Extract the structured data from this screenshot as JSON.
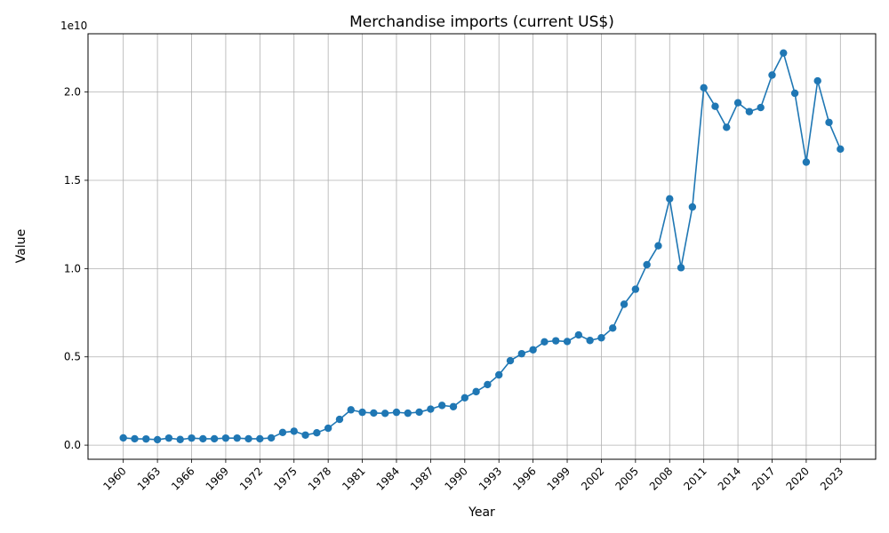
{
  "chart_data": {
    "type": "line",
    "title": "Merchandise imports (current US$)",
    "xlabel": "Year",
    "ylabel": "Value",
    "y_offset_label": "1e10",
    "xlim": [
      1956.9,
      2026.1
    ],
    "ylim": [
      -0.08,
      2.33
    ],
    "y_scale_factor": 10000000000,
    "grid": true,
    "marker": "circle",
    "line_color": "#1f77b4",
    "x_ticks": [
      1960,
      1963,
      1966,
      1969,
      1972,
      1975,
      1978,
      1981,
      1984,
      1987,
      1990,
      1993,
      1996,
      1999,
      2002,
      2005,
      2008,
      2011,
      2014,
      2017,
      2020,
      2023
    ],
    "x_tick_labels": [
      "1960",
      "1963",
      "1966",
      "1969",
      "1972",
      "1975",
      "1978",
      "1981",
      "1984",
      "1987",
      "1990",
      "1993",
      "1996",
      "1999",
      "2002",
      "2005",
      "2008",
      "2011",
      "2014",
      "2017",
      "2020",
      "2023"
    ],
    "y_ticks": [
      0.0,
      0.5,
      1.0,
      1.5,
      2.0
    ],
    "y_tick_labels": [
      "0.0",
      "0.5",
      "1.0",
      "1.5",
      "2.0"
    ],
    "series": [
      {
        "x": [
          1960,
          1961,
          1962,
          1963,
          1964,
          1965,
          1966,
          1967,
          1968,
          1969,
          1970,
          1971,
          1972,
          1973,
          1974,
          1975,
          1976,
          1977,
          1978,
          1979,
          1980,
          1981,
          1982,
          1983,
          1984,
          1985,
          1986,
          1987,
          1988,
          1989,
          1990,
          1991,
          1992,
          1993,
          1994,
          1995,
          1996,
          1997,
          1998,
          1999,
          2000,
          2001,
          2002,
          2003,
          2004,
          2005,
          2006,
          2007,
          2008,
          2009,
          2010,
          2011,
          2012,
          2013,
          2014,
          2015,
          2016,
          2017,
          2018,
          2019,
          2020,
          2021,
          2022,
          2023
        ],
        "y": [
          0.041,
          0.036,
          0.035,
          0.031,
          0.04,
          0.032,
          0.04,
          0.036,
          0.036,
          0.04,
          0.04,
          0.036,
          0.036,
          0.041,
          0.072,
          0.079,
          0.057,
          0.07,
          0.096,
          0.146,
          0.2,
          0.186,
          0.182,
          0.18,
          0.186,
          0.181,
          0.187,
          0.204,
          0.225,
          0.218,
          0.268,
          0.303,
          0.343,
          0.398,
          0.478,
          0.518,
          0.54,
          0.585,
          0.591,
          0.587,
          0.624,
          0.593,
          0.608,
          0.663,
          0.798,
          0.883,
          1.022,
          1.129,
          1.395,
          1.005,
          1.349,
          2.024,
          1.919,
          1.8,
          1.939,
          1.889,
          1.912,
          2.096,
          2.221,
          1.993,
          1.603,
          2.063,
          1.828,
          1.677
        ]
      }
    ]
  }
}
